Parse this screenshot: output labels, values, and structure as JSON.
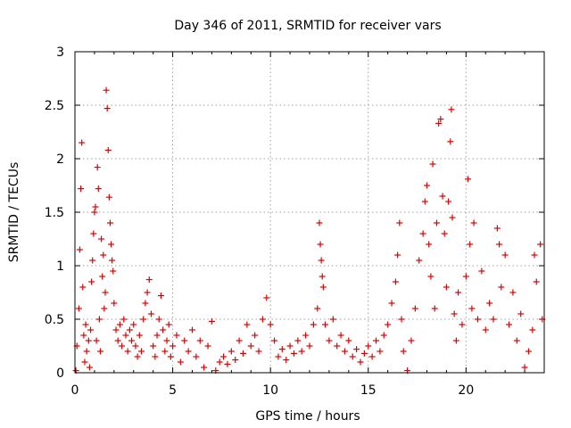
{
  "chart_data": {
    "type": "scatter",
    "title": "Day 346 of 2011, SRMTID for receiver vars",
    "xlabel": "GPS time / hours",
    "ylabel": "SRMTID / TECUs",
    "xlim": [
      0,
      24
    ],
    "ylim": [
      0,
      3
    ],
    "xticks": [
      0,
      5,
      10,
      15,
      20
    ],
    "xtick_labels": [
      "0",
      "5",
      "10",
      "15",
      "20"
    ],
    "yticks": [
      0,
      0.5,
      1,
      1.5,
      2,
      2.5,
      3
    ],
    "ytick_labels": [
      "0",
      "0.5",
      "1",
      "1.5",
      "2",
      "2.5",
      "3"
    ],
    "grid": true,
    "marker": "+",
    "color": "#e00000",
    "series": [
      {
        "name": "SRMTID",
        "points": [
          [
            0.05,
            0.02
          ],
          [
            0.1,
            0.25
          ],
          [
            0.2,
            0.6
          ],
          [
            0.25,
            1.15
          ],
          [
            0.3,
            1.72
          ],
          [
            0.35,
            2.15
          ],
          [
            0.4,
            0.8
          ],
          [
            0.45,
            0.35
          ],
          [
            0.5,
            0.1
          ],
          [
            0.55,
            0.45
          ],
          [
            0.6,
            0.2
          ],
          [
            0.7,
            0.3
          ],
          [
            0.75,
            0.05
          ],
          [
            0.8,
            0.4
          ],
          [
            0.85,
            0.85
          ],
          [
            0.9,
            1.05
          ],
          [
            0.95,
            1.3
          ],
          [
            1.0,
            1.5
          ],
          [
            1.05,
            1.55
          ],
          [
            1.1,
            0.3
          ],
          [
            1.15,
            1.92
          ],
          [
            1.2,
            1.72
          ],
          [
            1.25,
            0.5
          ],
          [
            1.3,
            0.2
          ],
          [
            1.35,
            1.25
          ],
          [
            1.4,
            0.9
          ],
          [
            1.45,
            1.1
          ],
          [
            1.5,
            0.6
          ],
          [
            1.55,
            0.75
          ],
          [
            1.6,
            2.64
          ],
          [
            1.65,
            2.47
          ],
          [
            1.7,
            2.08
          ],
          [
            1.75,
            1.64
          ],
          [
            1.8,
            1.4
          ],
          [
            1.85,
            1.2
          ],
          [
            1.9,
            1.05
          ],
          [
            1.95,
            0.95
          ],
          [
            2.0,
            0.65
          ],
          [
            2.1,
            0.4
          ],
          [
            2.2,
            0.3
          ],
          [
            2.3,
            0.45
          ],
          [
            2.4,
            0.25
          ],
          [
            2.5,
            0.5
          ],
          [
            2.6,
            0.35
          ],
          [
            2.7,
            0.2
          ],
          [
            2.8,
            0.4
          ],
          [
            2.9,
            0.3
          ],
          [
            3.0,
            0.45
          ],
          [
            3.1,
            0.25
          ],
          [
            3.2,
            0.15
          ],
          [
            3.3,
            0.35
          ],
          [
            3.4,
            0.2
          ],
          [
            3.5,
            0.5
          ],
          [
            3.6,
            0.65
          ],
          [
            3.7,
            0.75
          ],
          [
            3.8,
            0.87
          ],
          [
            3.9,
            0.55
          ],
          [
            4.0,
            0.25
          ],
          [
            4.1,
            0.15
          ],
          [
            4.2,
            0.35
          ],
          [
            4.3,
            0.5
          ],
          [
            4.4,
            0.72
          ],
          [
            4.5,
            0.4
          ],
          [
            4.6,
            0.2
          ],
          [
            4.7,
            0.3
          ],
          [
            4.8,
            0.45
          ],
          [
            4.9,
            0.15
          ],
          [
            5.0,
            0.25
          ],
          [
            5.2,
            0.35
          ],
          [
            5.4,
            0.1
          ],
          [
            5.6,
            0.3
          ],
          [
            5.8,
            0.2
          ],
          [
            6.0,
            0.4
          ],
          [
            6.2,
            0.15
          ],
          [
            6.4,
            0.3
          ],
          [
            6.6,
            0.05
          ],
          [
            6.8,
            0.25
          ],
          [
            7.0,
            0.48
          ],
          [
            7.2,
            0.02
          ],
          [
            7.4,
            0.1
          ],
          [
            7.6,
            0.15
          ],
          [
            7.8,
            0.08
          ],
          [
            8.0,
            0.2
          ],
          [
            8.2,
            0.12
          ],
          [
            8.4,
            0.3
          ],
          [
            8.6,
            0.18
          ],
          [
            8.8,
            0.45
          ],
          [
            9.0,
            0.25
          ],
          [
            9.2,
            0.35
          ],
          [
            9.4,
            0.2
          ],
          [
            9.6,
            0.5
          ],
          [
            9.8,
            0.7
          ],
          [
            10.0,
            0.45
          ],
          [
            10.2,
            0.3
          ],
          [
            10.4,
            0.15
          ],
          [
            10.6,
            0.22
          ],
          [
            10.8,
            0.12
          ],
          [
            11.0,
            0.25
          ],
          [
            11.2,
            0.18
          ],
          [
            11.4,
            0.3
          ],
          [
            11.6,
            0.2
          ],
          [
            11.8,
            0.35
          ],
          [
            12.0,
            0.25
          ],
          [
            12.2,
            0.45
          ],
          [
            12.4,
            0.6
          ],
          [
            12.5,
            1.4
          ],
          [
            12.55,
            1.2
          ],
          [
            12.6,
            1.05
          ],
          [
            12.65,
            0.9
          ],
          [
            12.7,
            0.8
          ],
          [
            12.8,
            0.45
          ],
          [
            13.0,
            0.3
          ],
          [
            13.2,
            0.5
          ],
          [
            13.4,
            0.25
          ],
          [
            13.6,
            0.35
          ],
          [
            13.8,
            0.2
          ],
          [
            14.0,
            0.3
          ],
          [
            14.2,
            0.15
          ],
          [
            14.4,
            0.22
          ],
          [
            14.6,
            0.1
          ],
          [
            14.8,
            0.18
          ],
          [
            15.0,
            0.25
          ],
          [
            15.2,
            0.15
          ],
          [
            15.4,
            0.3
          ],
          [
            15.6,
            0.2
          ],
          [
            15.8,
            0.35
          ],
          [
            16.0,
            0.45
          ],
          [
            16.2,
            0.65
          ],
          [
            16.4,
            0.85
          ],
          [
            16.5,
            1.1
          ],
          [
            16.6,
            1.4
          ],
          [
            16.7,
            0.5
          ],
          [
            16.8,
            0.2
          ],
          [
            17.0,
            0.02
          ],
          [
            17.2,
            0.3
          ],
          [
            17.4,
            0.6
          ],
          [
            17.6,
            1.05
          ],
          [
            17.8,
            1.3
          ],
          [
            17.9,
            1.6
          ],
          [
            18.0,
            1.75
          ],
          [
            18.1,
            1.2
          ],
          [
            18.2,
            0.9
          ],
          [
            18.3,
            1.95
          ],
          [
            18.4,
            0.6
          ],
          [
            18.5,
            1.4
          ],
          [
            18.6,
            2.33
          ],
          [
            18.7,
            2.37
          ],
          [
            18.8,
            1.65
          ],
          [
            18.9,
            1.3
          ],
          [
            19.0,
            0.8
          ],
          [
            19.1,
            1.6
          ],
          [
            19.2,
            2.16
          ],
          [
            19.25,
            2.46
          ],
          [
            19.3,
            1.45
          ],
          [
            19.4,
            0.55
          ],
          [
            19.5,
            0.3
          ],
          [
            19.6,
            0.75
          ],
          [
            19.8,
            0.45
          ],
          [
            20.0,
            0.9
          ],
          [
            20.1,
            1.81
          ],
          [
            20.2,
            1.2
          ],
          [
            20.3,
            0.6
          ],
          [
            20.4,
            1.4
          ],
          [
            20.6,
            0.5
          ],
          [
            20.8,
            0.95
          ],
          [
            21.0,
            0.4
          ],
          [
            21.2,
            0.65
          ],
          [
            21.4,
            0.5
          ],
          [
            21.6,
            1.35
          ],
          [
            21.7,
            1.2
          ],
          [
            21.8,
            0.8
          ],
          [
            22.0,
            1.1
          ],
          [
            22.2,
            0.45
          ],
          [
            22.4,
            0.75
          ],
          [
            22.6,
            0.3
          ],
          [
            22.8,
            0.55
          ],
          [
            23.0,
            0.05
          ],
          [
            23.2,
            0.2
          ],
          [
            23.4,
            0.4
          ],
          [
            23.5,
            1.1
          ],
          [
            23.6,
            0.85
          ],
          [
            23.8,
            1.2
          ],
          [
            23.9,
            0.5
          ]
        ]
      }
    ]
  }
}
